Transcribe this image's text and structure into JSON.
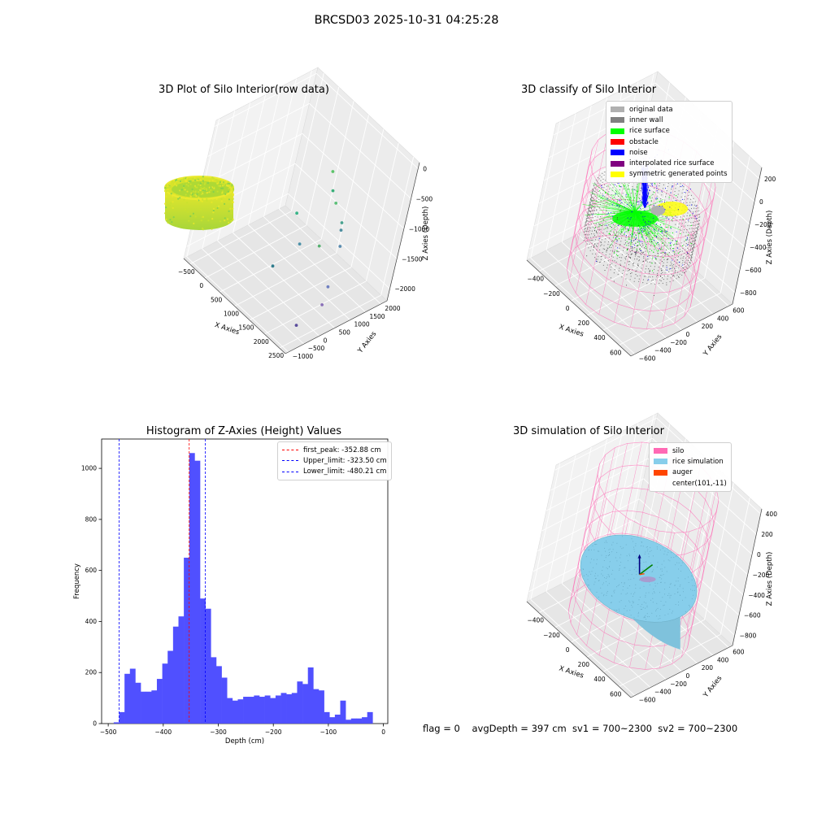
{
  "figure": {
    "suptitle": "BRCSD03 2025-10-31 04:25:28",
    "footer": "flag = 0    avgDepth = 397 cm  sv1 = 700~2300  sv2 = 700~2300"
  },
  "colors": {
    "original_data": "#b0b0b0",
    "inner_wall": "#808080",
    "rice_surface": "#00ff00",
    "obstacle": "#ff0000",
    "noise": "#0000ff",
    "interpolated": "#800080",
    "symmetric": "#ffff00",
    "silo": "#ff69b4",
    "rice_sim": "#87ceeb",
    "auger": "#ff4500",
    "hist_bar": "#5050ff",
    "peak_line": "#ff0000",
    "limit_line": "#0000ff"
  },
  "chart_data": [
    {
      "type": "scatter",
      "projection": "3d",
      "title": "3D Plot of Silo Interior(row data)",
      "xlabel": "X Axies",
      "ylabel": "Y Axies",
      "zlabel": "Z Axies (Depth)",
      "xticks": [
        "−500",
        "0",
        "500",
        "1000",
        "1500",
        "2000",
        "2500"
      ],
      "yticks": [
        "−1000",
        "−500",
        "0",
        "500",
        "1000",
        "1500",
        "2000"
      ],
      "zticks": [
        "−2000",
        "−1500",
        "−1000",
        "−500",
        "0"
      ],
      "xlim": [
        -700,
        2700
      ],
      "ylim": [
        -1100,
        2200
      ],
      "zlim": [
        -2200,
        100
      ],
      "outliers": [
        {
          "x": 900,
          "y": 1500,
          "z": -700
        },
        {
          "x": 1100,
          "y": 1400,
          "z": -900
        },
        {
          "x": 1300,
          "y": 1350,
          "z": -1000
        },
        {
          "x": 1700,
          "y": 1200,
          "z": -1100
        },
        {
          "x": 1800,
          "y": 1100,
          "z": -1150
        },
        {
          "x": 2100,
          "y": 800,
          "z": -1200
        },
        {
          "x": 700,
          "y": 800,
          "z": -1300
        },
        {
          "x": 1600,
          "y": 700,
          "z": -1400
        },
        {
          "x": 1200,
          "y": 500,
          "z": -1500
        },
        {
          "x": 2400,
          "y": 300,
          "z": -1600
        },
        {
          "x": 2500,
          "y": 100,
          "z": -1800
        },
        {
          "x": 900,
          "y": 100,
          "z": -1900
        },
        {
          "x": 2300,
          "y": -400,
          "z": -2100
        }
      ]
    },
    {
      "type": "scatter",
      "projection": "3d",
      "title": "3D classify of Silo Interior",
      "xlabel": "X Axies",
      "ylabel": "Y Axies",
      "zlabel": "Z Axies (Depth)",
      "xticks": [
        "−400",
        "−200",
        "0",
        "200",
        "400",
        "600"
      ],
      "yticks": [
        "−600",
        "−400",
        "−200",
        "0",
        "200",
        "400",
        "600"
      ],
      "zticks": [
        "−800",
        "−600",
        "−400",
        "−200",
        "0",
        "200"
      ],
      "xlim": [
        -550,
        750
      ],
      "ylim": [
        -650,
        650
      ],
      "zlim": [
        -900,
        300
      ],
      "legend": [
        "original data",
        "inner wall",
        "rice surface",
        "obstacle",
        "noise",
        "interpolated rice surface",
        "symmetric generated points"
      ]
    },
    {
      "type": "bar",
      "title": "Histogram of Z-Axies (Height) Values",
      "xlabel": "Depth (cm)",
      "ylabel": "Frequency",
      "xlim": [
        -512,
        8
      ],
      "ylim": [
        0,
        1115
      ],
      "xticks": [
        "−500",
        "−400",
        "−300",
        "−200",
        "−100",
        "0"
      ],
      "yticks": [
        "0",
        "200",
        "400",
        "600",
        "800",
        "1000"
      ],
      "bin_start": -490,
      "bin_width": 9.8,
      "values": [
        5,
        45,
        195,
        215,
        160,
        125,
        125,
        130,
        175,
        235,
        285,
        380,
        420,
        650,
        1060,
        1030,
        490,
        450,
        260,
        225,
        180,
        100,
        90,
        95,
        105,
        105,
        110,
        105,
        110,
        100,
        110,
        120,
        115,
        120,
        165,
        155,
        220,
        135,
        130,
        45,
        25,
        35,
        90,
        15,
        20,
        20,
        25,
        45
      ],
      "lines": [
        {
          "label": "first_peak: -352.88 cm",
          "x": -352.88,
          "kind": "peak"
        },
        {
          "label": "Upper_limit: -323.50 cm",
          "x": -323.5,
          "kind": "limit"
        },
        {
          "label": "Lower_limit: -480.21 cm",
          "x": -480.21,
          "kind": "limit"
        }
      ]
    },
    {
      "type": "surface",
      "projection": "3d",
      "title": "3D simulation of Silo Interior",
      "xlabel": "X Axies",
      "ylabel": "Y Axies",
      "zlabel": "Z Axies (Depth)",
      "xticks": [
        "−400",
        "−200",
        "0",
        "200",
        "400",
        "600"
      ],
      "yticks": [
        "−600",
        "−400",
        "−200",
        "0",
        "200",
        "400",
        "600"
      ],
      "zticks": [
        "−800",
        "−600",
        "−400",
        "−200",
        "0",
        "200",
        "400"
      ],
      "xlim": [
        -550,
        750
      ],
      "ylim": [
        -650,
        650
      ],
      "zlim": [
        -900,
        450
      ],
      "legend": [
        "silo",
        "rice simulation",
        "auger",
        "center(101,-11)"
      ],
      "avg_depth": -397
    }
  ]
}
